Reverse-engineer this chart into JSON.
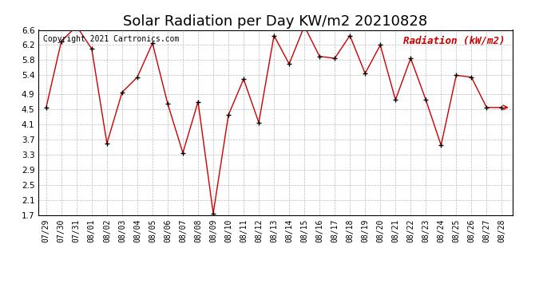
{
  "title": "Solar Radiation per Day KW/m2 20210828",
  "copyright_text": "Copyright 2021 Cartronics.com",
  "legend_label": "Radiation (kW/m2)",
  "x_labels": [
    "07/29",
    "07/30",
    "07/31",
    "08/01",
    "08/02",
    "08/03",
    "08/04",
    "08/05",
    "08/06",
    "08/07",
    "08/08",
    "08/09",
    "08/10",
    "08/11",
    "08/12",
    "08/13",
    "08/14",
    "08/15",
    "08/16",
    "08/17",
    "08/18",
    "08/19",
    "08/20",
    "08/21",
    "08/22",
    "08/23",
    "08/24",
    "08/25",
    "08/26",
    "08/27",
    "08/28"
  ],
  "values": [
    4.55,
    6.3,
    6.7,
    6.1,
    3.6,
    4.95,
    5.35,
    6.25,
    4.65,
    3.35,
    4.7,
    1.75,
    4.35,
    5.3,
    4.15,
    6.45,
    5.7,
    6.7,
    5.9,
    5.85,
    6.45,
    5.45,
    6.2,
    4.75,
    5.85,
    4.75,
    3.55,
    5.4,
    5.35,
    4.55,
    4.55
  ],
  "line_color": "#cc0000",
  "marker_color": "#000000",
  "background_color": "#ffffff",
  "grid_color": "#bbbbbb",
  "ylim": [
    1.7,
    6.6
  ],
  "yticks": [
    1.7,
    2.1,
    2.5,
    2.9,
    3.3,
    3.7,
    4.1,
    4.5,
    4.9,
    5.4,
    5.8,
    6.2,
    6.6
  ],
  "title_fontsize": 13,
  "copyright_fontsize": 7,
  "legend_fontsize": 9,
  "xlabel_fontsize": 7,
  "ylabel_fontsize": 7.5
}
